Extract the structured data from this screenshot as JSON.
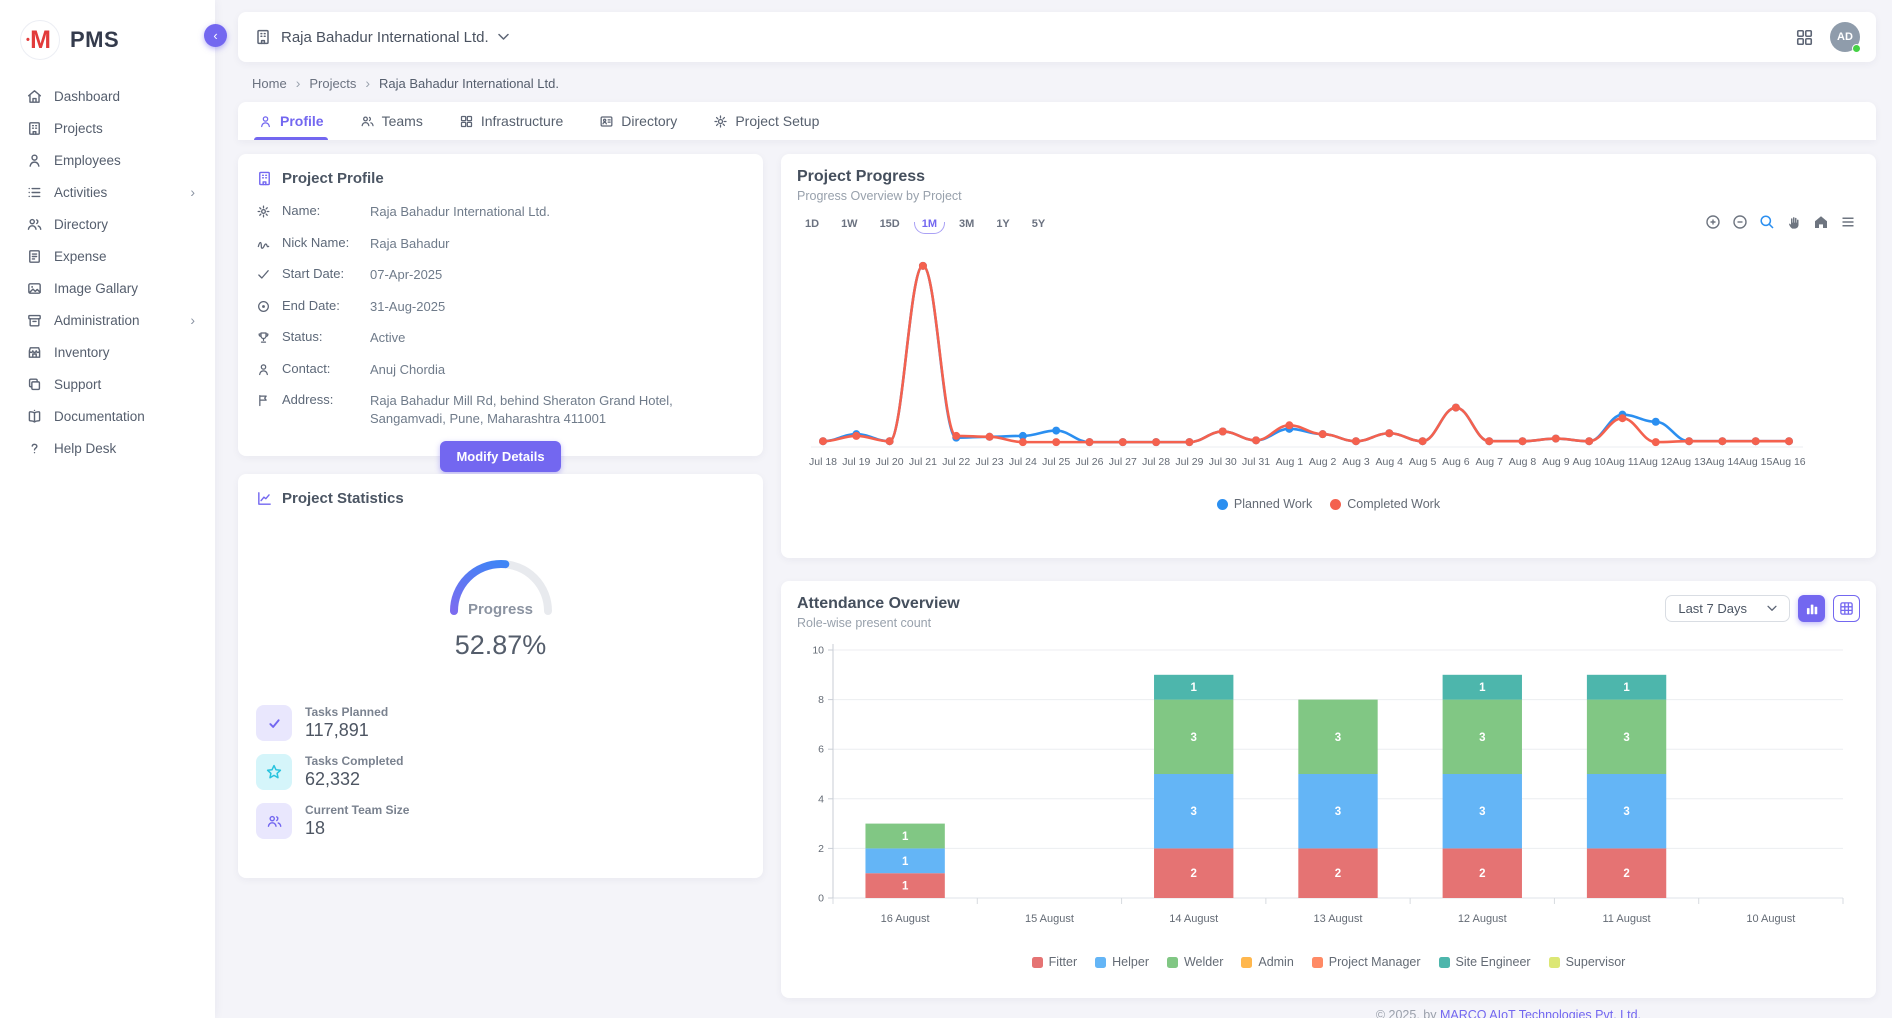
{
  "app": {
    "logo_letter": "M",
    "logo_text": "PMS"
  },
  "sidebar": {
    "items": [
      {
        "label": "Dashboard",
        "icon": "home-icon",
        "has_submenu": false
      },
      {
        "label": "Projects",
        "icon": "building-icon",
        "has_submenu": false
      },
      {
        "label": "Employees",
        "icon": "person-icon",
        "has_submenu": false
      },
      {
        "label": "Activities",
        "icon": "list-icon",
        "has_submenu": true
      },
      {
        "label": "Directory",
        "icon": "people-icon",
        "has_submenu": false
      },
      {
        "label": "Expense",
        "icon": "receipt-icon",
        "has_submenu": false
      },
      {
        "label": "Image Gallary",
        "icon": "image-icon",
        "has_submenu": false
      },
      {
        "label": "Administration",
        "icon": "archive-icon",
        "has_submenu": true
      },
      {
        "label": "Inventory",
        "icon": "store-icon",
        "has_submenu": false
      },
      {
        "label": "Support",
        "icon": "copy-icon",
        "has_submenu": false
      },
      {
        "label": "Documentation",
        "icon": "book-icon",
        "has_submenu": false
      },
      {
        "label": "Help Desk",
        "icon": "question-icon",
        "has_submenu": false
      }
    ]
  },
  "header": {
    "company": "Raja Bahadur International Ltd.",
    "avatar": "AD",
    "avatar_status": "online"
  },
  "breadcrumb": {
    "items": [
      "Home",
      "Projects",
      "Raja Bahadur International Ltd."
    ]
  },
  "tabs": [
    {
      "label": "Profile",
      "icon": "person-icon",
      "active": true
    },
    {
      "label": "Teams",
      "icon": "people-icon",
      "active": false
    },
    {
      "label": "Infrastructure",
      "icon": "grid-icon",
      "active": false
    },
    {
      "label": "Directory",
      "icon": "contact-card-icon",
      "active": false
    },
    {
      "label": "Project Setup",
      "icon": "gear-icon",
      "active": false
    }
  ],
  "profile_card": {
    "title": "Project Profile",
    "rows": [
      {
        "label": "Name:",
        "value": "Raja Bahadur International Ltd.",
        "icon": "gear-icon"
      },
      {
        "label": "Nick Name:",
        "value": "Raja Bahadur",
        "icon": "signature-icon"
      },
      {
        "label": "Start Date:",
        "value": "07-Apr-2025",
        "icon": "check-icon"
      },
      {
        "label": "End Date:",
        "value": "31-Aug-2025",
        "icon": "circle-dot-icon"
      },
      {
        "label": "Status:",
        "value": "Active",
        "icon": "trophy-icon"
      },
      {
        "label": "Contact:",
        "value": "Anuj Chordia",
        "icon": "person-icon"
      },
      {
        "label": "Address:",
        "value": "Raja Bahadur Mill Rd, behind Sheraton Grand Hotel, Sangamvadi, Pune, Maharashtra 411001",
        "icon": "flag-icon"
      }
    ],
    "button": "Modify Details"
  },
  "stats_card": {
    "title": "Project Statistics",
    "gauge": {
      "label": "Progress",
      "value": "52.87%",
      "percent": 52.87,
      "color_start": "#7b6cf0",
      "color_end": "#2d8cf7",
      "track": "#e8eaee"
    },
    "stats": [
      {
        "label": "Tasks Planned",
        "value": "117,891",
        "icon": "check-icon",
        "tint": "purple"
      },
      {
        "label": "Tasks Completed",
        "value": "62,332",
        "icon": "star-icon",
        "tint": "cyan"
      },
      {
        "label": "Current Team Size",
        "value": "18",
        "icon": "people-icon",
        "tint": "purple"
      }
    ]
  },
  "progress_card": {
    "title": "Project Progress",
    "subtitle": "Progress Overview by Project",
    "ranges": [
      "1D",
      "1W",
      "15D",
      "1M",
      "3M",
      "1Y",
      "5Y"
    ],
    "active_range": "1M",
    "toolbar": [
      "zoom-in-icon",
      "zoom-out-icon",
      "selection-zoom-icon",
      "pan-icon",
      "reset-home-icon",
      "menu-icon"
    ]
  },
  "attendance_card": {
    "title": "Attendance Overview",
    "subtitle": "Role-wise present count",
    "filter": "Last 7 Days",
    "views": [
      {
        "icon": "bar-chart-icon",
        "active": true
      },
      {
        "icon": "table-icon",
        "active": false
      }
    ]
  },
  "footer": {
    "prefix": "© 2025, by ",
    "link": "MARCO AIoT Technologies Pvt. Ltd."
  },
  "chart_data": [
    {
      "type": "line",
      "title": "Project Progress",
      "x": [
        "Jul 18",
        "Jul 19",
        "Jul 20",
        "Jul 21",
        "Jul 22",
        "Jul 23",
        "Jul 24",
        "Jul 25",
        "Jul 26",
        "Jul 27",
        "Jul 28",
        "Jul 29",
        "Jul 30",
        "Jul 31",
        "Aug 1",
        "Aug 2",
        "Aug 3",
        "Aug 4",
        "Aug 5",
        "Aug 6",
        "Aug 7",
        "Aug 8",
        "Aug 9",
        "Aug 10",
        "Aug 11",
        "Aug 12",
        "Aug 13",
        "Aug 14",
        "Aug 15",
        "Aug 16"
      ],
      "series": [
        {
          "name": "Planned Work",
          "color": "#2b8ff0",
          "values": [
            1,
            5,
            1,
            100,
            3,
            3.5,
            4,
            7,
            0.5,
            0.5,
            0.5,
            0.5,
            6.5,
            1.5,
            8,
            5,
            1,
            5.5,
            1,
            20,
            1,
            1,
            2.5,
            1,
            16,
            12,
            1,
            1,
            1,
            1
          ]
        },
        {
          "name": "Completed Work",
          "color": "#f4614e",
          "values": [
            1,
            4,
            1,
            100,
            4,
            3.5,
            0.5,
            0.5,
            0.5,
            0.5,
            0.5,
            0.5,
            6.5,
            1.5,
            10,
            5,
            1,
            5.5,
            1,
            20,
            1,
            1,
            2.5,
            1,
            14,
            0.5,
            1,
            1,
            1,
            1
          ]
        }
      ],
      "ylim": [
        0,
        105
      ],
      "grid": false,
      "legend_position": "bottom"
    },
    {
      "type": "bar",
      "stacked": true,
      "title": "Attendance Overview",
      "categories": [
        "16 August",
        "15 August",
        "14 August",
        "13 August",
        "12 August",
        "11 August",
        "10 August"
      ],
      "series": [
        {
          "name": "Fitter",
          "color": "#e57373",
          "values": [
            1,
            0,
            2,
            2,
            2,
            2,
            0
          ]
        },
        {
          "name": "Helper",
          "color": "#64b5f6",
          "values": [
            1,
            0,
            3,
            3,
            3,
            3,
            0
          ]
        },
        {
          "name": "Welder",
          "color": "#81c784",
          "values": [
            1,
            0,
            3,
            3,
            3,
            3,
            0
          ]
        },
        {
          "name": "Admin",
          "color": "#ffb74d",
          "values": [
            0,
            0,
            0,
            0,
            0,
            0,
            0
          ]
        },
        {
          "name": "Project Manager",
          "color": "#ff8a65",
          "values": [
            0,
            0,
            0,
            0,
            0,
            0,
            0
          ]
        },
        {
          "name": "Site Engineer",
          "color": "#4db6ac",
          "values": [
            0,
            0,
            1,
            0,
            1,
            1,
            0
          ]
        },
        {
          "name": "Supervisor",
          "color": "#dce775",
          "values": [
            0,
            0,
            0,
            0,
            0,
            0,
            0
          ]
        }
      ],
      "ylim": [
        0,
        10
      ],
      "yticks": [
        0,
        2,
        4,
        6,
        8,
        10
      ],
      "grid": true,
      "legend_position": "bottom"
    }
  ]
}
